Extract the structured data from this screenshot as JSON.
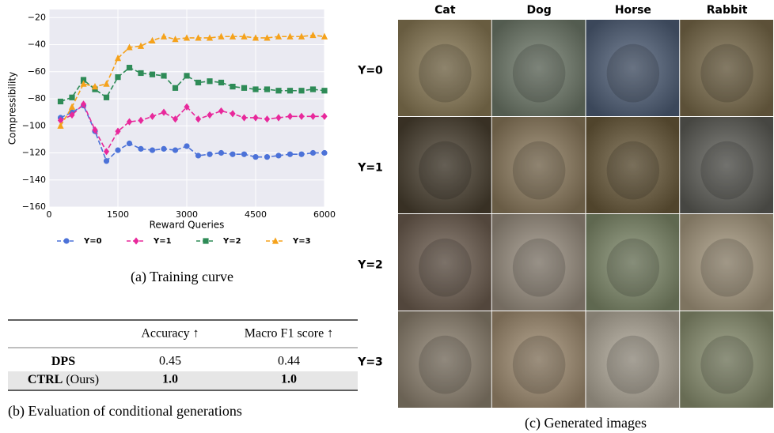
{
  "chart_data": {
    "type": "line",
    "x_label": "Reward Queries",
    "y_label": "Compressibility",
    "x": [
      250,
      500,
      750,
      1000,
      1250,
      1500,
      1750,
      2000,
      2250,
      2500,
      2750,
      3000,
      3250,
      3500,
      3750,
      4000,
      4250,
      4500,
      4750,
      5000,
      5250,
      5500,
      5750,
      6000
    ],
    "series": [
      {
        "name": "Y=0",
        "color": "#4c72d8",
        "marker": "circle",
        "values": [
          -94,
          -90,
          -85,
          -104,
          -126,
          -118,
          -113,
          -117,
          -118,
          -117,
          -118,
          -115,
          -122,
          -121,
          -120,
          -121,
          -121,
          -123,
          -123,
          -122,
          -121,
          -121,
          -120,
          -120
        ]
      },
      {
        "name": "Y=1",
        "color": "#e8289b",
        "marker": "diamond",
        "values": [
          -96,
          -92,
          -84,
          -103,
          -119,
          -104,
          -97,
          -96,
          -93,
          -90,
          -95,
          -86,
          -95,
          -92,
          -89,
          -91,
          -94,
          -94,
          -95,
          -94,
          -93,
          -93,
          -93,
          -93
        ]
      },
      {
        "name": "Y=2",
        "color": "#2e8b57",
        "marker": "square",
        "values": [
          -82,
          -79,
          -66,
          -73,
          -79,
          -64,
          -57,
          -61,
          -62,
          -63,
          -72,
          -63,
          -68,
          -67,
          -68,
          -71,
          -72,
          -73,
          -73,
          -74,
          -74,
          -74,
          -73,
          -74
        ]
      },
      {
        "name": "Y=3",
        "color": "#f5a21b",
        "marker": "triangle",
        "values": [
          -100,
          -86,
          -69,
          -71,
          -69,
          -50,
          -42,
          -41,
          -37,
          -34,
          -36,
          -35,
          -35,
          -35,
          -34,
          -34,
          -34,
          -35,
          -35,
          -34,
          -34,
          -34,
          -33,
          -34
        ]
      }
    ],
    "xlim": [
      0,
      6000
    ],
    "xticks": [
      0,
      1500,
      3000,
      4500,
      6000
    ],
    "ylim": [
      -160,
      -14
    ],
    "yticks": [
      {
        "value": -20,
        "label": "−20"
      },
      {
        "value": -40,
        "label": "−40"
      },
      {
        "value": -60,
        "label": "−60"
      },
      {
        "value": -80,
        "label": "−80"
      },
      {
        "value": -100,
        "label": "−100"
      },
      {
        "value": -120,
        "label": "−120"
      },
      {
        "value": -140,
        "label": "−140"
      },
      {
        "value": -160,
        "label": "−160"
      }
    ],
    "grid": true,
    "legend": "bottom"
  },
  "captions": {
    "a": "(a) Training curve",
    "b": "(b) Evaluation of conditional generations",
    "c": "(c) Generated images"
  },
  "table": {
    "header": [
      "Accuracy ↑",
      "Macro F1 score ↑"
    ],
    "rows": [
      {
        "method": "DPS",
        "note": null,
        "cells": [
          "0.45",
          "0.44"
        ]
      },
      {
        "method": "CTRL",
        "note": "(Ours)",
        "cells": [
          "1.0",
          "1.0"
        ]
      }
    ]
  },
  "images": {
    "columns": [
      "Cat",
      "Dog",
      "Horse",
      "Rabbit"
    ],
    "rows": [
      "Y=0",
      "Y=1",
      "Y=2",
      "Y=3"
    ]
  }
}
